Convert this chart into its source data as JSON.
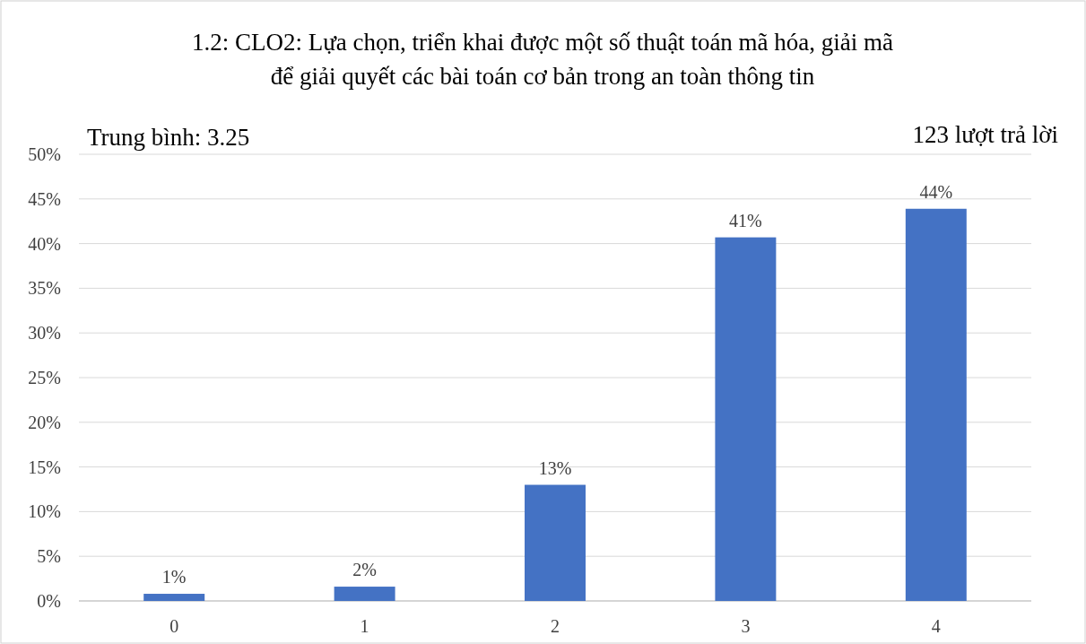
{
  "chart_data": {
    "type": "bar",
    "title": "1.2: CLO2: Lựa chọn, triển khai được một số thuật toán mã hóa, giải mã\nđể giải quyết các bài toán cơ bản trong an toàn thông tin",
    "annotations": [
      "Trung bình: 3.25",
      "123 lượt trả lời"
    ],
    "categories": [
      "0",
      "1",
      "2",
      "3",
      "4"
    ],
    "values": [
      0.8,
      1.6,
      13,
      40.7,
      43.9
    ],
    "value_labels": [
      "1%",
      "2%",
      "13%",
      "41%",
      "44%"
    ],
    "color": "#4472c4",
    "ylim": [
      0,
      50
    ],
    "yticks": [
      {
        "value": 0,
        "label": "0%"
      },
      {
        "value": 5,
        "label": "5%"
      },
      {
        "value": 10,
        "label": "10%"
      },
      {
        "value": 15,
        "label": "15%"
      },
      {
        "value": 20,
        "label": "20%"
      },
      {
        "value": 25,
        "label": "25%"
      },
      {
        "value": 30,
        "label": "30%"
      },
      {
        "value": 35,
        "label": "35%"
      },
      {
        "value": 40,
        "label": "40%"
      },
      {
        "value": 45,
        "label": "45%"
      },
      {
        "value": 50,
        "label": "50%"
      }
    ],
    "grid": "y"
  }
}
